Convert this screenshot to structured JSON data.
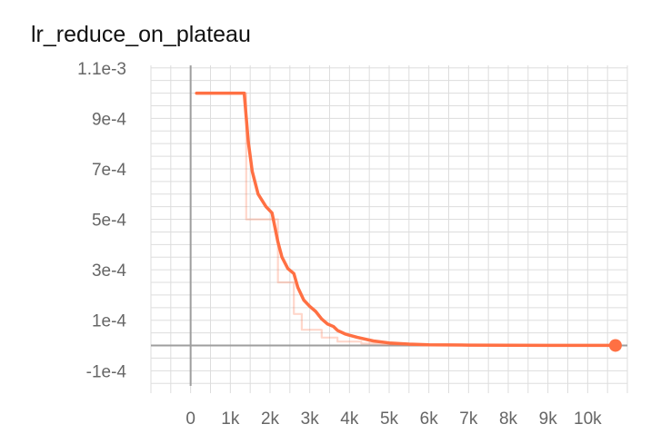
{
  "title": "lr_reduce_on_plateau",
  "chart_data": {
    "type": "line",
    "title": "lr_reduce_on_plateau",
    "xlabel": "",
    "ylabel": "",
    "xlim": [
      -1000,
      11000
    ],
    "ylim": [
      -0.00016,
      0.00111
    ],
    "x_ticks": [
      0,
      1000,
      2000,
      3000,
      4000,
      5000,
      6000,
      7000,
      8000,
      9000,
      10000
    ],
    "x_tick_labels": [
      "0",
      "1k",
      "2k",
      "3k",
      "4k",
      "5k",
      "6k",
      "7k",
      "8k",
      "9k",
      "10k"
    ],
    "y_ticks": [
      0.0011,
      0.0009,
      0.0007,
      0.0005,
      0.0003,
      0.0001,
      -0.0001
    ],
    "y_tick_labels": [
      "1.1e-3",
      "9e-4",
      "7e-4",
      "5e-4",
      "3e-4",
      "1e-4",
      "-1e-4"
    ],
    "grid": true,
    "colors": {
      "smoothed": "#ff7043",
      "raw": "#ff7043",
      "grid": "#dddddd",
      "zero_axis": "#9e9e9e"
    },
    "series": [
      {
        "role": "smoothed",
        "x": [
          150,
          1350,
          1450,
          1550,
          1700,
          1900,
          2050,
          2200,
          2300,
          2450,
          2600,
          2700,
          2850,
          3000,
          3150,
          3300,
          3450,
          3600,
          3700,
          3900,
          4200,
          4600,
          5000,
          5500,
          6000,
          7000,
          8000,
          9000,
          10000,
          10700
        ],
        "y": [
          0.001,
          0.001,
          0.00081,
          0.00069,
          0.0006,
          0.00055,
          0.000525,
          0.00041,
          0.00035,
          0.000305,
          0.000285,
          0.00023,
          0.00018,
          0.000155,
          0.000135,
          0.000105,
          8.5e-05,
          7.5e-05,
          6e-05,
          4.5e-05,
          3.2e-05,
          1.8e-05,
          1e-05,
          5.5e-06,
          3e-06,
          1.5e-06,
          8e-07,
          5e-07,
          4e-07,
          3e-07
        ]
      },
      {
        "role": "raw",
        "x": [
          150,
          1400,
          1400,
          2200,
          2200,
          2600,
          2600,
          2800,
          2800,
          3300,
          3300,
          3700,
          3700,
          4300,
          4300,
          4800,
          4800,
          5500,
          5500,
          6500,
          6500,
          10700
        ],
        "y": [
          0.001,
          0.001,
          0.0005,
          0.0005,
          0.00025,
          0.00025,
          0.000125,
          0.000125,
          6.25e-05,
          6.25e-05,
          3.125e-05,
          3.125e-05,
          1.56e-05,
          1.56e-05,
          7.8e-06,
          7.8e-06,
          3.9e-06,
          3.9e-06,
          2e-06,
          2e-06,
          1e-06,
          1e-06
        ]
      }
    ],
    "last_point": {
      "x": 10700,
      "y": 3e-07
    }
  }
}
